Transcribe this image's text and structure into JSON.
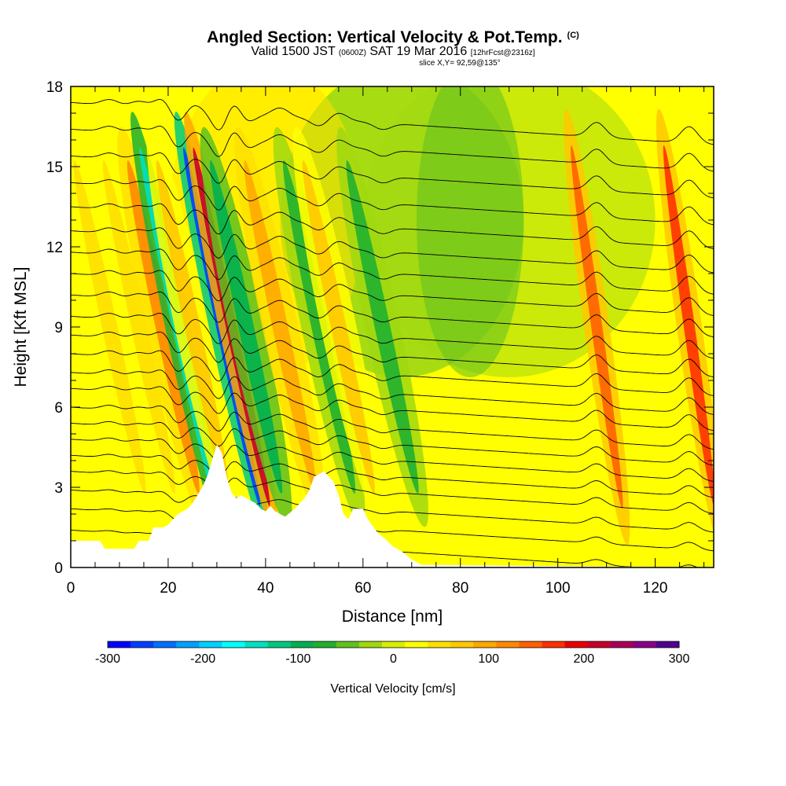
{
  "header": {
    "title": "Angled Section: Vertical Velocity & Pot.Temp.",
    "title_mark": "(C)",
    "valid_prefix": "Valid 1500 JST",
    "valid_utc": "(0600Z)",
    "valid_date": "SAT 19 Mar 2016",
    "forecast": "[12hrFcst@2316z]",
    "slice": "slice X,Y= 92,59@135°"
  },
  "chart_data": {
    "type": "heatmap",
    "title": "Angled Section: Vertical Velocity & Pot.Temp.",
    "xlabel": "Distance [nm]",
    "ylabel": "Height [Kft MSL]",
    "xlim": [
      0,
      132
    ],
    "ylim": [
      0,
      18
    ],
    "x_ticks": [
      0,
      20,
      40,
      60,
      80,
      100,
      120
    ],
    "y_ticks": [
      0,
      3,
      6,
      9,
      12,
      15,
      18
    ],
    "colorbar": {
      "label": "Vertical Velocity [cm/s]",
      "range": [
        -300,
        300
      ],
      "tick_values": [
        -300,
        -200,
        -100,
        0,
        100,
        200,
        300
      ],
      "colors": [
        "#0000ff",
        "#0040ff",
        "#0070ff",
        "#00a0ff",
        "#00d0ff",
        "#00ffff",
        "#00e0c0",
        "#00c880",
        "#00b050",
        "#20b030",
        "#60c020",
        "#a0d810",
        "#d8ee00",
        "#ffff00",
        "#ffe000",
        "#ffc800",
        "#ffa800",
        "#ff8800",
        "#ff6000",
        "#ff3000",
        "#e80000",
        "#c8002a",
        "#a8005a",
        "#880088",
        "#500090"
      ]
    },
    "terrain_kft": [
      [
        0,
        1
      ],
      [
        6,
        1
      ],
      [
        7,
        0.7
      ],
      [
        13,
        0.7
      ],
      [
        14,
        1
      ],
      [
        16,
        1
      ],
      [
        17,
        1.5
      ],
      [
        19,
        1.5
      ],
      [
        20,
        1.6
      ],
      [
        21,
        1.8
      ],
      [
        22,
        2
      ],
      [
        24,
        2.2
      ],
      [
        25,
        2.4
      ],
      [
        26,
        2.7
      ],
      [
        27,
        3
      ],
      [
        28,
        3.4
      ],
      [
        29,
        4
      ],
      [
        30,
        4.6
      ],
      [
        31,
        4.3
      ],
      [
        32,
        3.4
      ],
      [
        33,
        2.8
      ],
      [
        34,
        2.6
      ],
      [
        35,
        2.7
      ],
      [
        36,
        2.6
      ],
      [
        38,
        2.4
      ],
      [
        39,
        2.2
      ],
      [
        40,
        2.1
      ],
      [
        41,
        2.3
      ],
      [
        42,
        2.1
      ],
      [
        44,
        1.9
      ],
      [
        46,
        2.2
      ],
      [
        48,
        2.6
      ],
      [
        49,
        2.9
      ],
      [
        50,
        3.4
      ],
      [
        52,
        3.6
      ],
      [
        54,
        3.2
      ],
      [
        55,
        2.7
      ],
      [
        56,
        2
      ],
      [
        57,
        1.8
      ],
      [
        58,
        2.2
      ],
      [
        60,
        2.2
      ],
      [
        61,
        1.8
      ],
      [
        63,
        1.3
      ],
      [
        65,
        1
      ],
      [
        66,
        0.8
      ],
      [
        68,
        0.6
      ],
      [
        70,
        0.3
      ],
      [
        72,
        0.1
      ],
      [
        132,
        0
      ]
    ],
    "vertical_velocity_features": [
      {
        "x": 8,
        "kind": "updraft",
        "value": 60
      },
      {
        "x": 14,
        "kind": "updraft",
        "value": 60
      },
      {
        "x": 19,
        "kind": "updraft",
        "value": 120
      },
      {
        "x": 22,
        "kind": "downdraft",
        "value": -160
      },
      {
        "x": 25,
        "kind": "updraft",
        "value": 80
      },
      {
        "x": 31,
        "kind": "downdraft",
        "value": -280
      },
      {
        "x": 33,
        "kind": "updraft",
        "value": 220
      },
      {
        "x": 36,
        "kind": "downdraft",
        "value": -100
      },
      {
        "x": 43,
        "kind": "updraft",
        "value": 90
      },
      {
        "x": 51,
        "kind": "downdraft",
        "value": -80
      },
      {
        "x": 55,
        "kind": "updraft",
        "value": 80
      },
      {
        "x": 64,
        "kind": "downdraft",
        "value": -70
      },
      {
        "x": 108,
        "kind": "updraft",
        "value": 160
      },
      {
        "x": 127,
        "kind": "updraft",
        "value": 180
      }
    ],
    "isentrope_levels_kft": [
      1.4,
      2.2,
      2.9,
      3.6,
      4.2,
      4.8,
      5.4,
      6,
      6.7,
      7.3,
      8,
      8.7,
      9.4,
      10.2,
      11,
      11.8,
      12.6,
      13.5,
      14.4,
      15.4,
      16.4,
      17.4
    ]
  }
}
